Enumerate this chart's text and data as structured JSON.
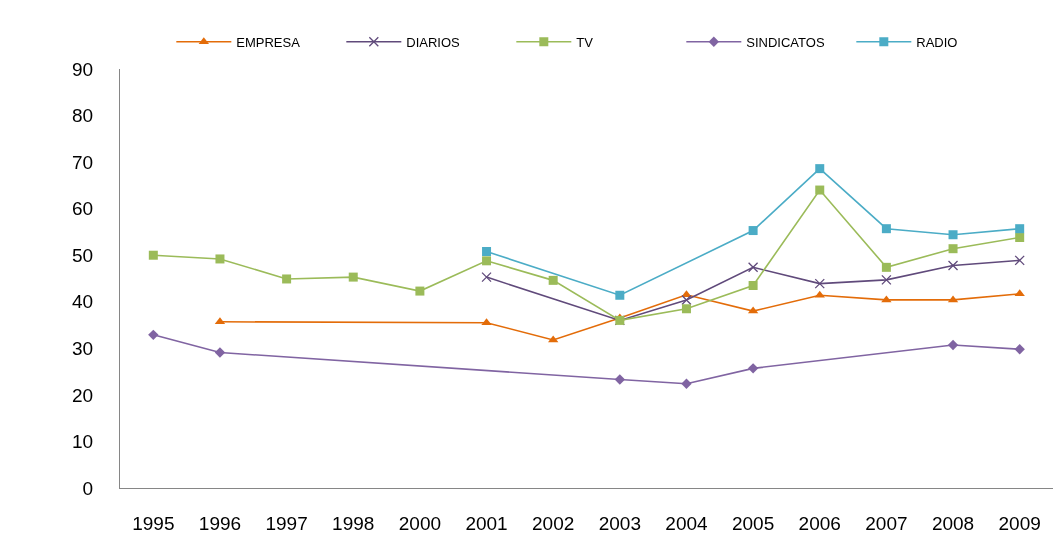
{
  "chart_data": {
    "type": "line",
    "categories": [
      "1995",
      "1996",
      "1997",
      "1998",
      "2000",
      "2001",
      "2002",
      "2003",
      "2004",
      "2005",
      "2006",
      "2007",
      "2008",
      "2009"
    ],
    "series": [
      {
        "name": "EMPRESA",
        "color": "#e36c09",
        "marker": "triangle",
        "values": [
          null,
          35.7,
          null,
          null,
          null,
          35.5,
          31.8,
          36.5,
          41.5,
          38.0,
          41.4,
          40.4,
          40.4,
          41.7
        ]
      },
      {
        "name": "DIARIOS",
        "color": "#604a7b",
        "marker": "cross",
        "values": [
          null,
          null,
          null,
          null,
          null,
          45.3,
          null,
          36.0,
          40.4,
          47.4,
          43.9,
          44.7,
          47.8,
          48.9
        ]
      },
      {
        "name": "TV",
        "color": "#9bbb59",
        "marker": "square",
        "values": [
          50.0,
          49.2,
          44.9,
          45.3,
          42.3,
          48.8,
          44.6,
          36.0,
          38.5,
          43.5,
          64.0,
          47.4,
          51.4,
          53.8
        ]
      },
      {
        "name": "SINDICATOS",
        "color": "#8064a2",
        "marker": "diamond",
        "values": [
          32.9,
          29.1,
          null,
          null,
          null,
          null,
          null,
          23.3,
          22.4,
          25.7,
          null,
          null,
          30.7,
          29.8
        ]
      },
      {
        "name": "RADIO",
        "color": "#4bacc6",
        "marker": "square",
        "values": [
          null,
          null,
          null,
          null,
          null,
          50.8,
          null,
          41.4,
          null,
          55.3,
          68.6,
          55.7,
          54.4,
          55.7
        ]
      }
    ],
    "ylim": [
      0,
      90
    ],
    "yticks": [
      0,
      10,
      20,
      30,
      40,
      50,
      60,
      70,
      80,
      90
    ],
    "legend": "top",
    "line_style": "solid"
  }
}
